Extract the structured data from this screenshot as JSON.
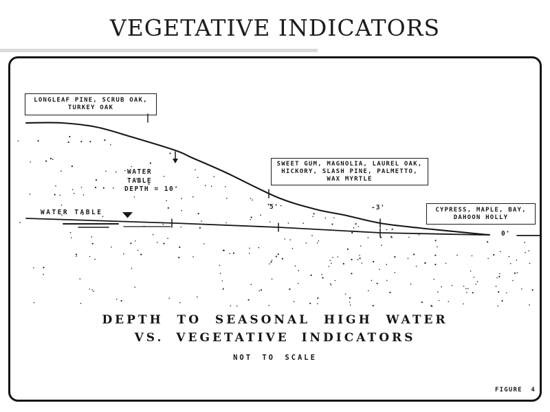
{
  "title": "VEGETATIVE INDICATORS",
  "vegetation_boxes": {
    "upland": {
      "lines": [
        "LONGLEAF PINE, SCRUB OAK,",
        "TURKEY OAK"
      ]
    },
    "transition": {
      "lines": [
        "SWEET GUM, MAGNOLIA, LAUREL OAK,",
        "HICKORY, SLASH PINE, PALMETTO,",
        "WAX MYRTLE"
      ]
    },
    "wetland": {
      "lines": [
        "CYPRESS, MAPLE, BAY,",
        "DAHOON HOLLY"
      ]
    }
  },
  "water_table": {
    "label": "WATER TABLE",
    "depth_note_lines": [
      "WATER",
      "TABLE",
      "DEPTH = 10'"
    ]
  },
  "depth_markers": {
    "five": "5'",
    "three": "-3'",
    "zero": "0'"
  },
  "caption": {
    "line1": "DEPTH TO SEASONAL HIGH WATER",
    "line2": "VS. VEGETATIVE INDICATORS",
    "note": "NOT TO SCALE"
  },
  "figure_label": "FIGURE 4",
  "colors": {
    "ink": "#1a1a1a",
    "paper": "#ffffff"
  }
}
